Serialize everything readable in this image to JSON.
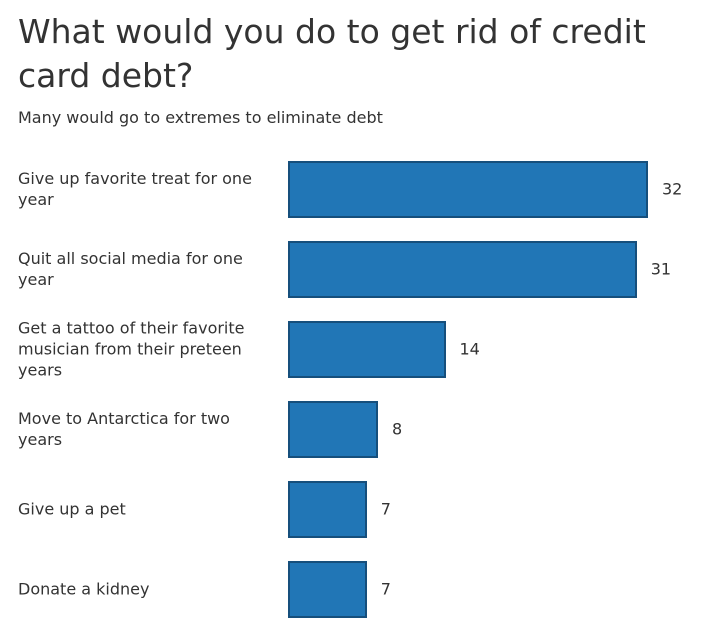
{
  "chart_data": {
    "type": "bar",
    "orientation": "horizontal",
    "title": "What would you do to get rid of credit card debt?",
    "subtitle": "Many would go to extremes to eliminate debt",
    "categories": [
      "Give up favorite treat for one year",
      "Quit all social media for one year",
      "Get a tattoo of their favorite musician from their preteen years",
      "Move to Antarctica for two years",
      "Give up a pet",
      "Donate a kidney"
    ],
    "values": [
      32,
      31,
      14,
      8,
      7,
      7
    ],
    "color": "#2176b6"
  }
}
